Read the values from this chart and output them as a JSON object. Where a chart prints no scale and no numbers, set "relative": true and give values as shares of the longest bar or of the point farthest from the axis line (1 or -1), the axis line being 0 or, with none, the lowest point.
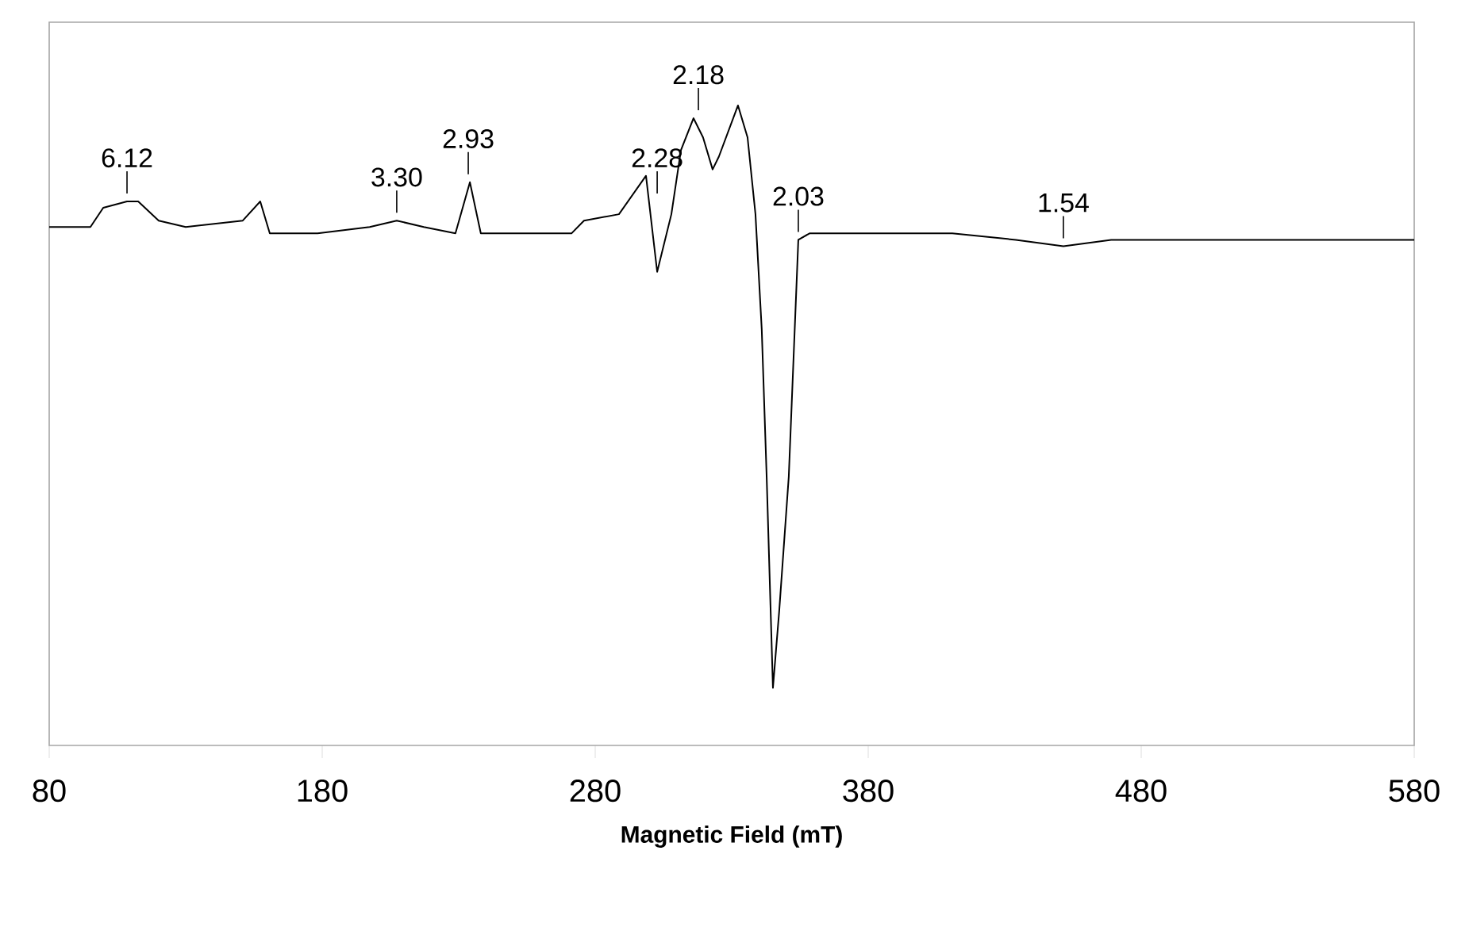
{
  "chart_data": {
    "type": "line",
    "relative": true,
    "color": "#000000",
    "xlabel": "Magnetic Field (mT)",
    "xlim": [
      80,
      580
    ],
    "xticks": [
      80,
      180,
      280,
      380,
      480,
      580
    ],
    "x": [
      80.0,
      95.1,
      99.8,
      108.5,
      112.6,
      120.1,
      130.0,
      150.9,
      157.3,
      160.8,
      178.3,
      197.4,
      207.3,
      217.2,
      228.8,
      234.1,
      238.1,
      271.3,
      275.9,
      288.7,
      298.6,
      302.7,
      307.9,
      311.4,
      316.0,
      319.5,
      323.0,
      325.3,
      332.3,
      335.8,
      338.7,
      341.0,
      342.8,
      345.1,
      347.4,
      350.9,
      354.4,
      358.5,
      364.3,
      410.8,
      434.1,
      451.5,
      469.0,
      527.1,
      580.0
    ],
    "values": [
      0.81,
      0.81,
      0.84,
      0.85,
      0.85,
      0.82,
      0.81,
      0.82,
      0.85,
      0.8,
      0.8,
      0.81,
      0.82,
      0.81,
      0.8,
      0.88,
      0.8,
      0.8,
      0.82,
      0.83,
      0.89,
      0.74,
      0.83,
      0.93,
      0.98,
      0.95,
      0.9,
      0.92,
      1.0,
      0.95,
      0.83,
      0.65,
      0.42,
      0.09,
      0.21,
      0.42,
      0.79,
      0.8,
      0.8,
      0.8,
      0.79,
      0.78,
      0.79,
      0.79,
      0.79
    ],
    "annotations": [
      {
        "text": "6.12",
        "x": 108.5,
        "y": 0.85
      },
      {
        "text": "3.30",
        "x": 207.3,
        "y": 0.82
      },
      {
        "text": "2.93",
        "x": 233.5,
        "y": 0.88
      },
      {
        "text": "2.28",
        "x": 302.7,
        "y": 0.85
      },
      {
        "text": "2.18",
        "x": 317.8,
        "y": 0.98
      },
      {
        "text": "2.03",
        "x": 354.4,
        "y": 0.79
      },
      {
        "text": "1.54",
        "x": 451.5,
        "y": 0.78
      }
    ]
  }
}
